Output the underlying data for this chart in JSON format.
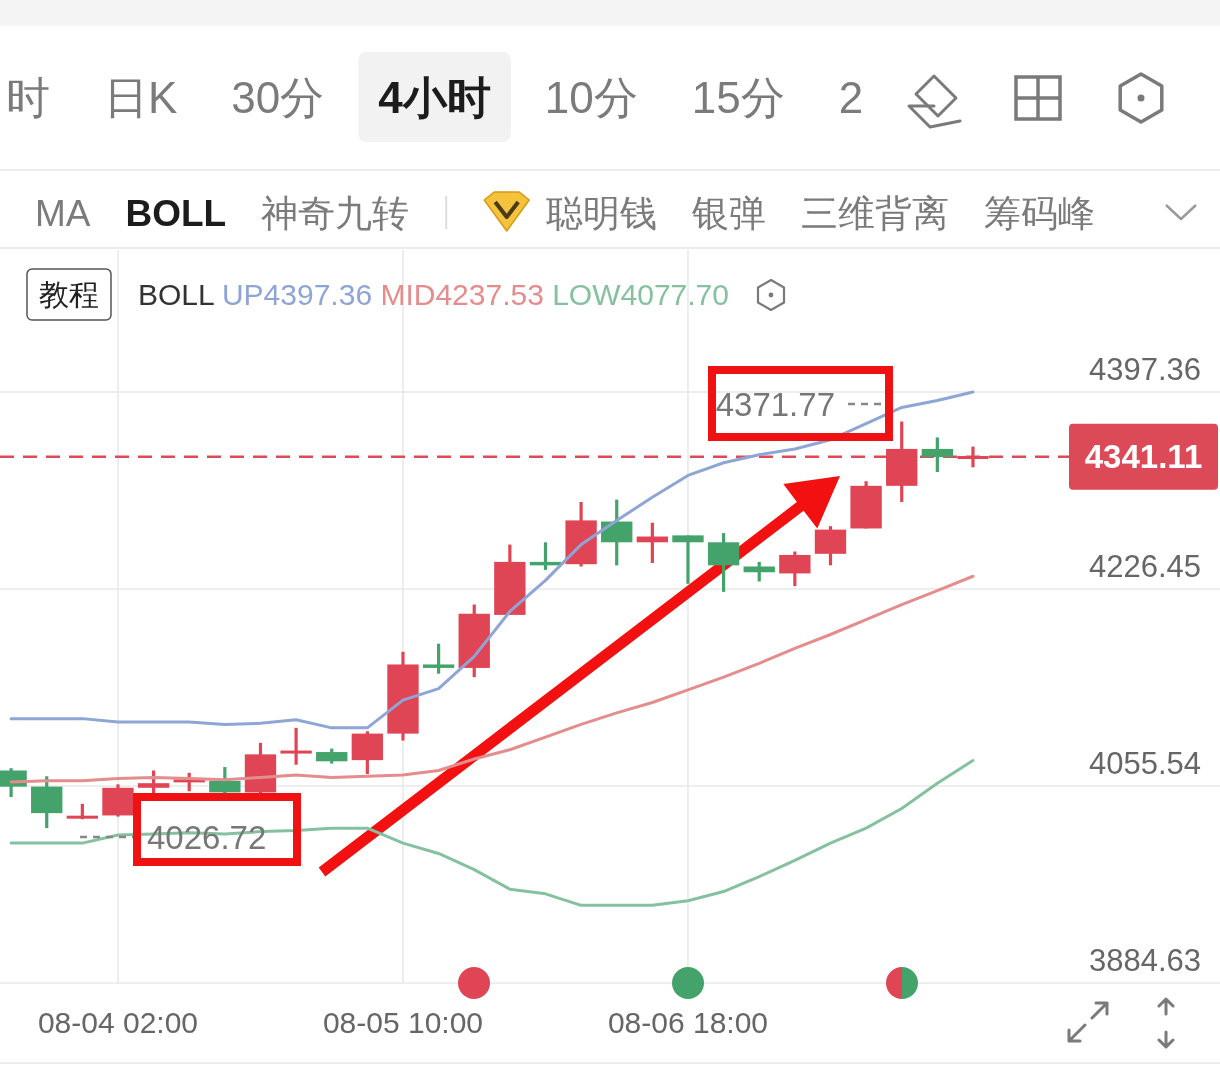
{
  "chart_data": [
    {
      "type": "other",
      "annotations": [
        "时",
        "日K",
        "30分",
        "4小时",
        "10分",
        "15分",
        "2"
      ]
    },
    {
      "type": "other",
      "annotations": [
        "MA",
        "BOLL",
        "神奇九转",
        "聪明钱",
        "银弹",
        "三维背离",
        "筹码峰"
      ]
    },
    {
      "type": "candlestick",
      "legend_title": "BOLL",
      "legend": "top",
      "grid": true,
      "categories": [
        null,
        null,
        null,
        "08-04 02:00",
        null,
        null,
        null,
        null,
        null,
        null,
        null,
        "08-05 10:00",
        null,
        null,
        null,
        null,
        null,
        null,
        null,
        "08-06 18:00",
        null,
        null,
        null,
        null,
        null,
        null,
        null,
        null
      ],
      "ylim": [
        3884.63,
        4520.6
      ],
      "yticks": [
        3884.63,
        4055.54,
        4226.45,
        4397.36
      ],
      "ohlc": [
        [
          4069,
          4071,
          4046,
          4055
        ],
        [
          4055,
          4064,
          4019,
          4032
        ],
        [
          4028,
          4040,
          4026.72,
          4029
        ],
        [
          4030,
          4057,
          4029,
          4054
        ],
        [
          4054,
          4069,
          4049,
          4058
        ],
        [
          4059,
          4067,
          4051,
          4061
        ],
        [
          4060,
          4072,
          4049,
          4050
        ],
        [
          4050,
          4093,
          4049,
          4083
        ],
        [
          4084,
          4106,
          4074,
          4086
        ],
        [
          4085,
          4088,
          4075,
          4077
        ],
        [
          4078,
          4103,
          4066,
          4101
        ],
        [
          4101,
          4172,
          4095,
          4161
        ],
        [
          4161,
          4179,
          4153,
          4158
        ],
        [
          4158,
          4213,
          4150,
          4205
        ],
        [
          4204,
          4265,
          4204,
          4250
        ],
        [
          4250,
          4267,
          4243,
          4247
        ],
        [
          4248,
          4302,
          4246,
          4286
        ],
        [
          4285,
          4304,
          4247,
          4267
        ],
        [
          4267,
          4284,
          4249,
          4272
        ],
        [
          4273,
          4273,
          4231,
          4267
        ],
        [
          4267,
          4275,
          4224,
          4247
        ],
        [
          4246,
          4250,
          4233,
          4241
        ],
        [
          4240,
          4259,
          4229,
          4256
        ],
        [
          4257,
          4281,
          4247,
          4278
        ],
        [
          4279,
          4320,
          4279,
          4316
        ],
        [
          4316,
          4371.77,
          4302,
          4348
        ],
        [
          4348,
          4358,
          4328,
          4341
        ],
        [
          4340,
          4350,
          4332,
          4341.11
        ]
      ],
      "colors": [
        "#43a36b",
        "#43a36b",
        "#e04555",
        "#e04555",
        "#e04555",
        "#e04555",
        "#43a36b",
        "#e04555",
        "#e04555",
        "#43a36b",
        "#e04555",
        "#e04555",
        "#43a36b",
        "#e04555",
        "#e04555",
        "#43a36b",
        "#e04555",
        "#43a36b",
        "#e04555",
        "#43a36b",
        "#43a36b",
        "#43a36b",
        "#e04555",
        "#e04555",
        "#e04555",
        "#e04555",
        "#43a36b",
        "#e04555"
      ],
      "series": [
        {
          "name": "UP4397.36",
          "type": "line",
          "color": "#8ea5d5",
          "values": [
            4114,
            4114,
            4114,
            4111,
            4111,
            4111,
            4109,
            4110,
            4113,
            4106,
            4106,
            4130,
            4140,
            4168,
            4207,
            4234,
            4265,
            4286,
            4306,
            4325,
            4336,
            4343,
            4348,
            4356,
            4370,
            4384,
            4390,
            4397.36
          ]
        },
        {
          "name": "MID4237.53",
          "type": "line",
          "color": "#e58c8c",
          "values": [
            4059,
            4060,
            4060,
            4062,
            4063,
            4062,
            4061,
            4063,
            4065,
            4063,
            4064,
            4065,
            4069,
            4079,
            4087,
            4098,
            4109,
            4119,
            4128,
            4139,
            4150,
            4162,
            4175,
            4187,
            4200,
            4213,
            4225,
            4237.53
          ]
        },
        {
          "name": "LOW4077.70",
          "type": "line",
          "color": "#86c19f",
          "values": [
            4006,
            4006,
            4006,
            4013,
            4014,
            4015,
            4014,
            4016,
            4017,
            4019,
            4019,
            4006,
            3997,
            3983,
            3966,
            3962,
            3952,
            3952,
            3952,
            3956,
            3964,
            3977,
            3991,
            4006,
            4019,
            4036,
            4058,
            4077.7
          ]
        }
      ],
      "ref_lines": [
        {
          "axis": "y",
          "value": 4341.11,
          "label": "4341.11",
          "color": "#dc4a58",
          "line_style": "dashed"
        }
      ],
      "annotations": [
        "教程",
        "4371.77",
        "4026.72"
      ]
    }
  ]
}
